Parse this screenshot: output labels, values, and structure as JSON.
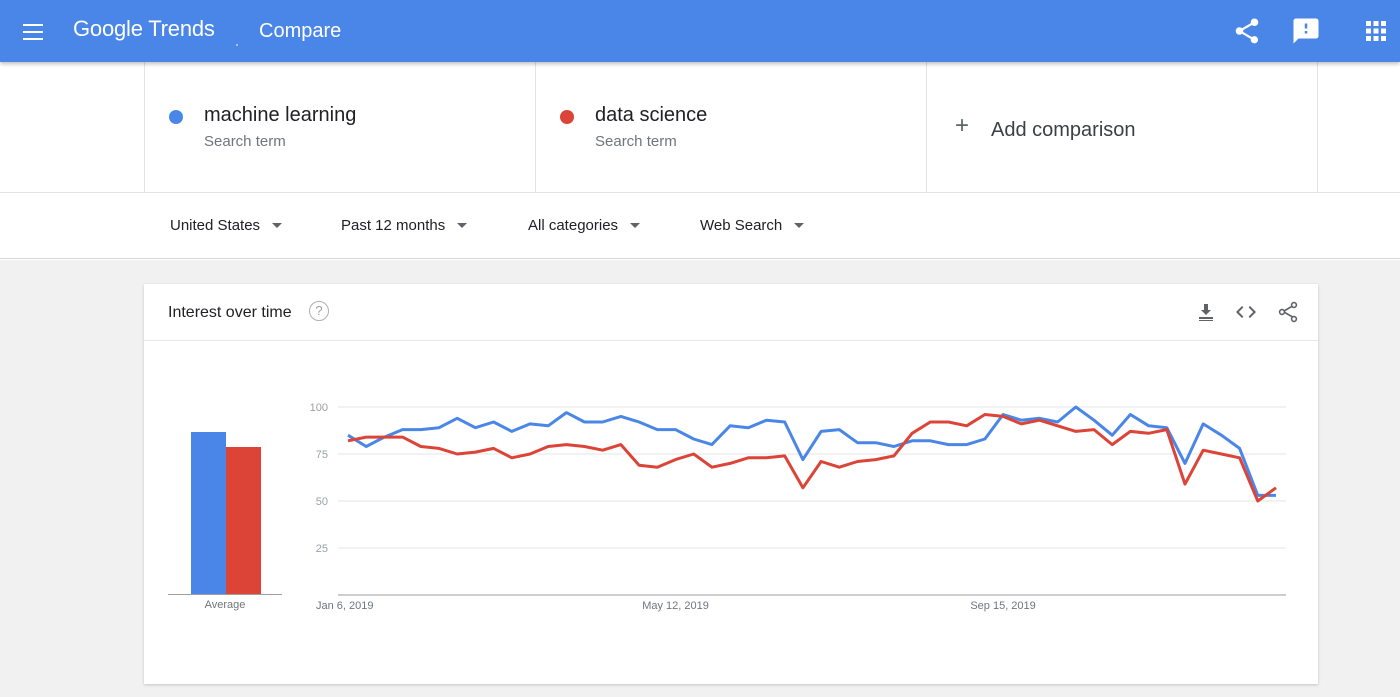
{
  "appbar": {
    "logo": "Google Trends",
    "page_title": "Compare",
    "icons": [
      "menu-icon",
      "share-icon",
      "feedback-icon",
      "apps-icon"
    ]
  },
  "terms": [
    {
      "name": "machine learning",
      "sub": "Search term",
      "color": "#4a86e8"
    },
    {
      "name": "data science",
      "sub": "Search term",
      "color": "#db4437"
    }
  ],
  "add_comparison": "Add comparison",
  "filters": {
    "region": "United States",
    "period": "Past 12 months",
    "category": "All categories",
    "search_type": "Web Search"
  },
  "card": {
    "title": "Interest over time",
    "help": "?",
    "average_label": "Average"
  },
  "chart_data": {
    "type": "line",
    "title": "Interest over time",
    "ylim": [
      0,
      100
    ],
    "yticks": [
      25,
      50,
      75,
      100
    ],
    "x_labels": [
      "Jan 6, 2019",
      "May 12, 2019",
      "Sep 15, 2019"
    ],
    "averages": {
      "machine learning": 86,
      "data science": 78
    },
    "series": [
      {
        "name": "machine learning",
        "color": "#4a86e8",
        "values": [
          85,
          79,
          84,
          88,
          88,
          89,
          94,
          89,
          92,
          87,
          91,
          90,
          97,
          92,
          92,
          95,
          92,
          88,
          88,
          83,
          80,
          90,
          89,
          93,
          92,
          72,
          87,
          88,
          81,
          81,
          79,
          82,
          82,
          80,
          80,
          83,
          96,
          93,
          94,
          92,
          100,
          93,
          85,
          96,
          90,
          89,
          70,
          91,
          85,
          78,
          53,
          53
        ]
      },
      {
        "name": "data science",
        "color": "#db4437",
        "values": [
          82,
          84,
          84,
          84,
          79,
          78,
          75,
          76,
          78,
          73,
          75,
          79,
          80,
          79,
          77,
          80,
          69,
          68,
          72,
          75,
          68,
          70,
          73,
          73,
          74,
          57,
          71,
          68,
          71,
          72,
          74,
          86,
          92,
          92,
          90,
          96,
          95,
          91,
          93,
          90,
          87,
          88,
          80,
          87,
          86,
          88,
          59,
          77,
          75,
          73,
          50,
          57
        ]
      }
    ]
  }
}
